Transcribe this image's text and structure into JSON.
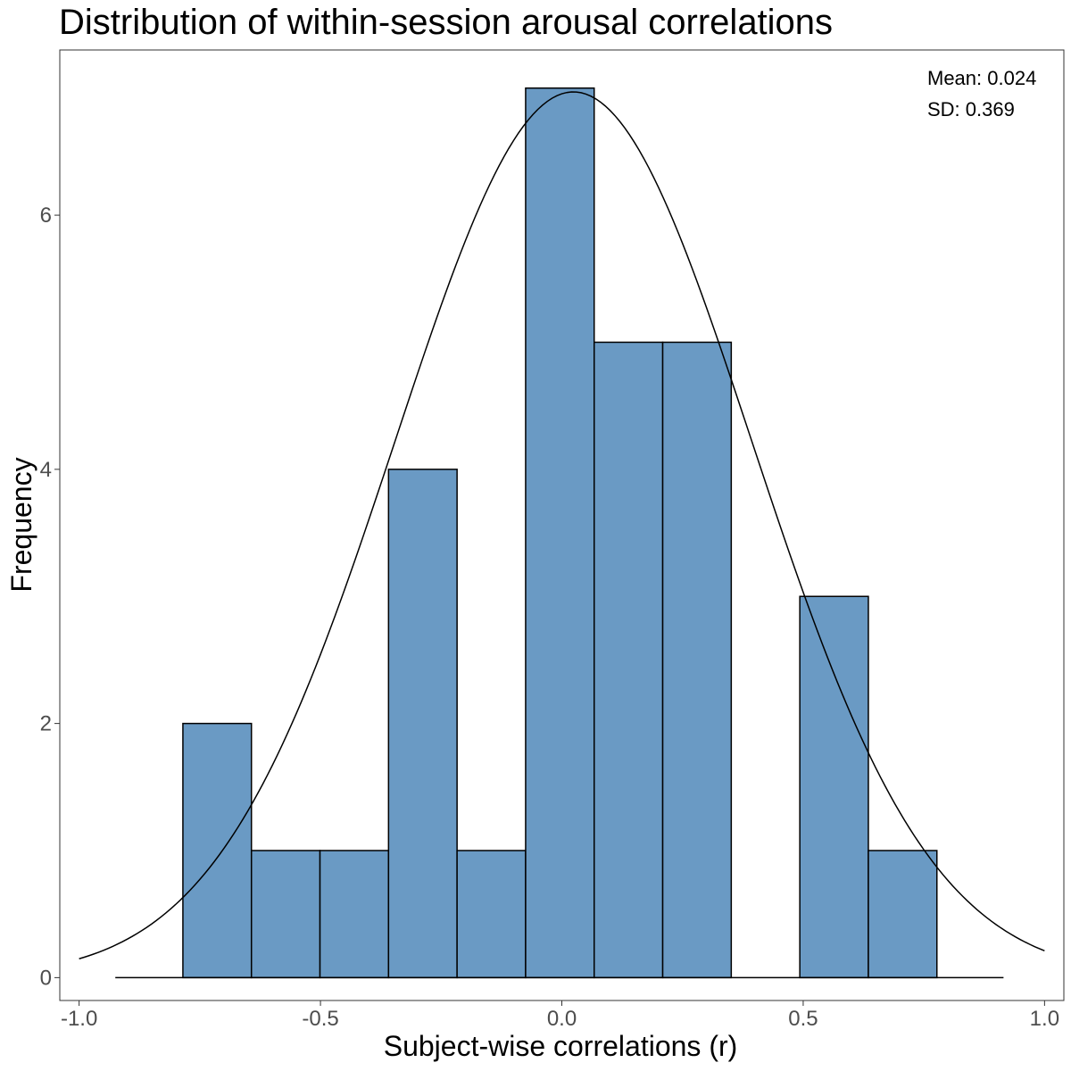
{
  "chart_data": {
    "type": "bar",
    "title": "Distribution of within-session arousal correlations",
    "xlabel": "Subject-wise correlations (r)",
    "ylabel": "Frequency",
    "xlim": [
      -1.04,
      1.04
    ],
    "ylim": [
      -0.18,
      7.3
    ],
    "x_ticks": [
      {
        "value": -1.0,
        "label": "-1.0"
      },
      {
        "value": -0.5,
        "label": "-0.5"
      },
      {
        "value": 0.0,
        "label": "0.0"
      },
      {
        "value": 0.5,
        "label": "0.5"
      },
      {
        "value": 1.0,
        "label": "1.0"
      }
    ],
    "y_ticks": [
      {
        "value": 0,
        "label": "0"
      },
      {
        "value": 2,
        "label": "2"
      },
      {
        "value": 4,
        "label": "4"
      },
      {
        "value": 6,
        "label": "6"
      }
    ],
    "bins": [
      {
        "x0": -0.785,
        "x1": -0.643,
        "count": 2
      },
      {
        "x0": -0.643,
        "x1": -0.501,
        "count": 1
      },
      {
        "x0": -0.501,
        "x1": -0.359,
        "count": 1
      },
      {
        "x0": -0.359,
        "x1": -0.217,
        "count": 4
      },
      {
        "x0": -0.217,
        "x1": -0.075,
        "count": 1
      },
      {
        "x0": -0.075,
        "x1": 0.067,
        "count": 7
      },
      {
        "x0": 0.067,
        "x1": 0.209,
        "count": 5
      },
      {
        "x0": 0.209,
        "x1": 0.351,
        "count": 5
      },
      {
        "x0": 0.351,
        "x1": 0.493,
        "count": 0
      },
      {
        "x0": 0.493,
        "x1": 0.635,
        "count": 3
      },
      {
        "x0": 0.635,
        "x1": 0.777,
        "count": 1
      }
    ],
    "baseline_range": [
      -0.925,
      0.915
    ],
    "normal_curve": {
      "mean": 0.024,
      "sd": 0.369,
      "peak": 6.97,
      "range": [
        -1.0,
        1.0
      ]
    },
    "bar_fill": "#6a9ac4",
    "bar_stroke": "#000000",
    "grid": false,
    "legend": "none",
    "annotations": [
      "Mean: 0.024",
      "SD: 0.369"
    ]
  }
}
